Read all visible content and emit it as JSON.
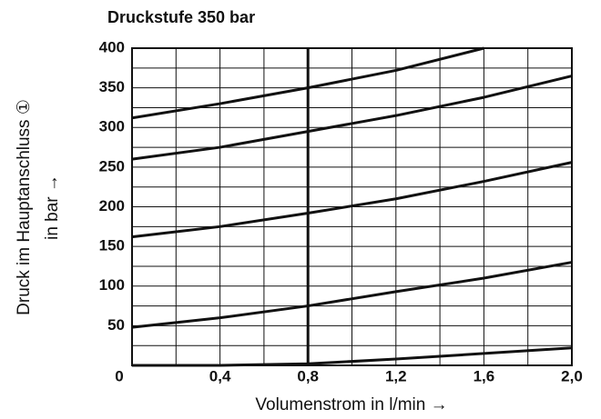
{
  "chart_data": {
    "type": "line",
    "title": "Druckstufe 350 bar",
    "ylabel": [
      "Druck im Hauptanschluss ①",
      "in bar →"
    ],
    "xlabel": "Volumenstrom in l/min →",
    "x": [
      0,
      0.4,
      0.8,
      1.2,
      1.6,
      2.0
    ],
    "series": [
      {
        "color": "#111111",
        "values": [
          312,
          330,
          350,
          372,
          400,
          null
        ]
      },
      {
        "color": "#111111",
        "values": [
          260,
          275,
          295,
          315,
          338,
          365
        ]
      },
      {
        "color": "#111111",
        "values": [
          162,
          175,
          192,
          210,
          232,
          256
        ]
      },
      {
        "color": "#111111",
        "values": [
          48,
          60,
          75,
          93,
          110,
          130
        ]
      },
      {
        "color": "#111111",
        "values": [
          0,
          0,
          2,
          8,
          15,
          22
        ]
      }
    ],
    "xlim": [
      0,
      2.0
    ],
    "ylim": [
      0,
      400
    ],
    "xticks": [
      0,
      {
        "value": 0.4,
        "label": "0,4"
      },
      {
        "value": 0.8,
        "label": "0,8"
      },
      {
        "value": 1.2,
        "label": "1,2"
      },
      {
        "value": 1.6,
        "label": "1,6"
      },
      {
        "value": 2.0,
        "label": "2,0"
      }
    ],
    "yticks": [
      50,
      100,
      150,
      200,
      250,
      300,
      350,
      400
    ],
    "x_minor_ticks": [
      0.2,
      0.6,
      1.0,
      1.4,
      1.8
    ],
    "y_minor_ticks": [
      25,
      75,
      125,
      175,
      225,
      275,
      325,
      375
    ],
    "bold_x": 0.8,
    "grid": true
  }
}
